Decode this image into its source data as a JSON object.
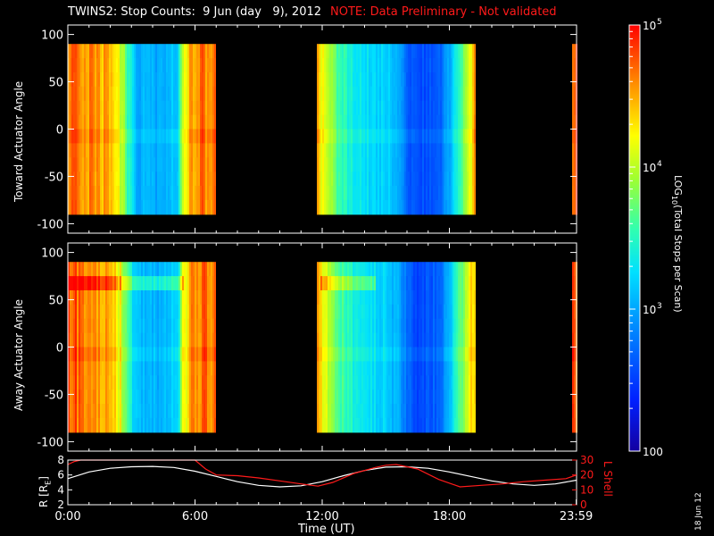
{
  "header": {
    "title": "TWINS2: Stop Counts:  9 Jun (day   9), 2012",
    "note": "NOTE: Data Preliminary - Not validated"
  },
  "date_stamp": "18 Jun 12",
  "colors": {
    "background": "#000000",
    "axis": "#ffffff",
    "note": "#ff1a1a",
    "r_line": "#ffffff",
    "lshell_line": "#ff1a1a"
  },
  "chart_data": [
    {
      "type": "heatmap",
      "name": "toward-panel",
      "ylabel": "Toward Actuator Angle",
      "ylim": [
        -110,
        110
      ],
      "yticks": [
        100,
        50,
        0,
        -50,
        -100
      ],
      "angle_range": [
        -90,
        90
      ],
      "xlim": [
        0,
        24
      ],
      "data_blocks_hours": [
        [
          0,
          7.0
        ],
        [
          11.75,
          19.2
        ],
        [
          23.8,
          24
        ]
      ],
      "profile": {
        "x_hours": [
          0.0,
          0.3,
          0.8,
          1.5,
          2.0,
          2.5,
          2.8,
          3.2,
          4.5,
          5.2,
          5.4,
          5.8,
          6.3,
          6.6,
          7.0,
          11.75,
          12.0,
          12.4,
          12.8,
          13.5,
          14.0,
          14.5,
          15.0,
          15.3,
          15.6,
          16.0,
          16.5,
          17.0,
          17.5,
          18.0,
          18.3,
          18.7,
          19.0,
          19.2,
          23.8,
          24.0
        ],
        "log_counts": [
          4.7,
          4.75,
          4.6,
          4.55,
          4.35,
          4.1,
          3.6,
          3.05,
          3.0,
          3.2,
          4.0,
          4.55,
          4.7,
          4.55,
          4.7,
          4.45,
          4.2,
          3.9,
          3.6,
          3.35,
          3.3,
          3.2,
          3.2,
          3.1,
          3.05,
          2.7,
          2.55,
          2.6,
          2.65,
          3.0,
          3.4,
          3.8,
          4.2,
          4.5,
          4.75,
          4.75
        ]
      }
    },
    {
      "type": "heatmap",
      "name": "away-panel",
      "ylabel": "Away Actuator Angle",
      "ylim": [
        -110,
        110
      ],
      "yticks": [
        100,
        50,
        0,
        -50,
        -100
      ],
      "angle_range": [
        -90,
        90
      ],
      "xlim": [
        0,
        24
      ],
      "data_blocks_hours": [
        [
          0,
          7.0
        ],
        [
          11.75,
          19.2
        ],
        [
          23.8,
          24
        ]
      ],
      "profile": {
        "x_hours": [
          0.0,
          0.3,
          0.8,
          1.5,
          2.0,
          2.5,
          2.8,
          3.2,
          4.5,
          5.2,
          5.4,
          5.8,
          6.3,
          6.6,
          7.0,
          11.75,
          12.0,
          12.4,
          12.8,
          13.5,
          14.0,
          14.5,
          15.0,
          15.3,
          15.6,
          16.0,
          16.5,
          17.0,
          17.5,
          18.0,
          18.3,
          18.7,
          19.0,
          19.2,
          23.8,
          24.0
        ],
        "log_counts": [
          4.7,
          4.75,
          4.6,
          4.6,
          4.4,
          4.15,
          3.65,
          3.1,
          3.05,
          3.25,
          4.05,
          4.55,
          4.7,
          4.6,
          4.7,
          4.5,
          4.25,
          3.95,
          3.65,
          3.4,
          3.35,
          3.25,
          3.2,
          3.1,
          3.05,
          2.7,
          2.55,
          2.6,
          2.7,
          3.05,
          3.45,
          3.85,
          4.25,
          4.5,
          4.75,
          4.75
        ]
      }
    },
    {
      "type": "line",
      "name": "orbit-panel",
      "ylabel_left": "R [R",
      "ylabel_left_sub": "E",
      "ylabel_left_close": "]",
      "ylabel_right": "L Shell",
      "ylim_left": [
        2,
        8
      ],
      "yticks_left": [
        8,
        6,
        4,
        2
      ],
      "ylim_right": [
        0,
        30
      ],
      "yticks_right": [
        30,
        20,
        10,
        0
      ],
      "xlim": [
        0,
        24
      ],
      "xticks": [
        "0:00",
        "6:00",
        "12:00",
        "18:00",
        "23:59"
      ],
      "xtick_hours": [
        0,
        6,
        12,
        18,
        23.983
      ],
      "xlabel": "Time (UT)",
      "series": [
        {
          "name": "R",
          "axis": "left",
          "x": [
            0.0,
            1.0,
            2.0,
            3.0,
            4.0,
            5.0,
            6.0,
            7.0,
            8.0,
            9.0,
            10.0,
            11.0,
            12.0,
            13.0,
            14.0,
            15.0,
            16.0,
            17.0,
            18.0,
            19.0,
            20.0,
            21.0,
            22.0,
            23.0,
            24.0
          ],
          "y": [
            5.5,
            6.4,
            6.9,
            7.1,
            7.15,
            7.0,
            6.5,
            5.8,
            5.1,
            4.6,
            4.4,
            4.55,
            5.1,
            5.9,
            6.6,
            7.05,
            7.1,
            6.9,
            6.4,
            5.8,
            5.2,
            4.8,
            4.6,
            4.8,
            5.3
          ]
        },
        {
          "name": "L Shell",
          "axis": "right",
          "x": [
            0.0,
            0.3,
            0.6,
            1.0,
            5.6,
            6.0,
            6.5,
            7.0,
            8.0,
            9.0,
            10.0,
            11.0,
            11.8,
            12.5,
            13.5,
            14.5,
            15.0,
            15.5,
            16.5,
            17.5,
            18.5,
            19.5,
            20.5,
            21.5,
            22.5,
            23.5,
            24.0
          ],
          "y": [
            27,
            29,
            32,
            35,
            35,
            31,
            24,
            20,
            19.5,
            18,
            16,
            14,
            12.5,
            15,
            21,
            25,
            26.5,
            27,
            24,
            17,
            12,
            13,
            14,
            15.5,
            16.5,
            17.5,
            20
          ]
        }
      ]
    }
  ],
  "colorbar": {
    "label": "LOG",
    "label_sub": "10",
    "label_rest": "(Total Stops per Scan)",
    "range": [
      2,
      5
    ],
    "ticks": [
      {
        "value": 5,
        "text": "10",
        "sup": "5"
      },
      {
        "value": 4,
        "text": "10",
        "sup": "4"
      },
      {
        "value": 3,
        "text": "10",
        "sup": "3"
      },
      {
        "value": 2,
        "text": "100",
        "sup": ""
      }
    ]
  }
}
